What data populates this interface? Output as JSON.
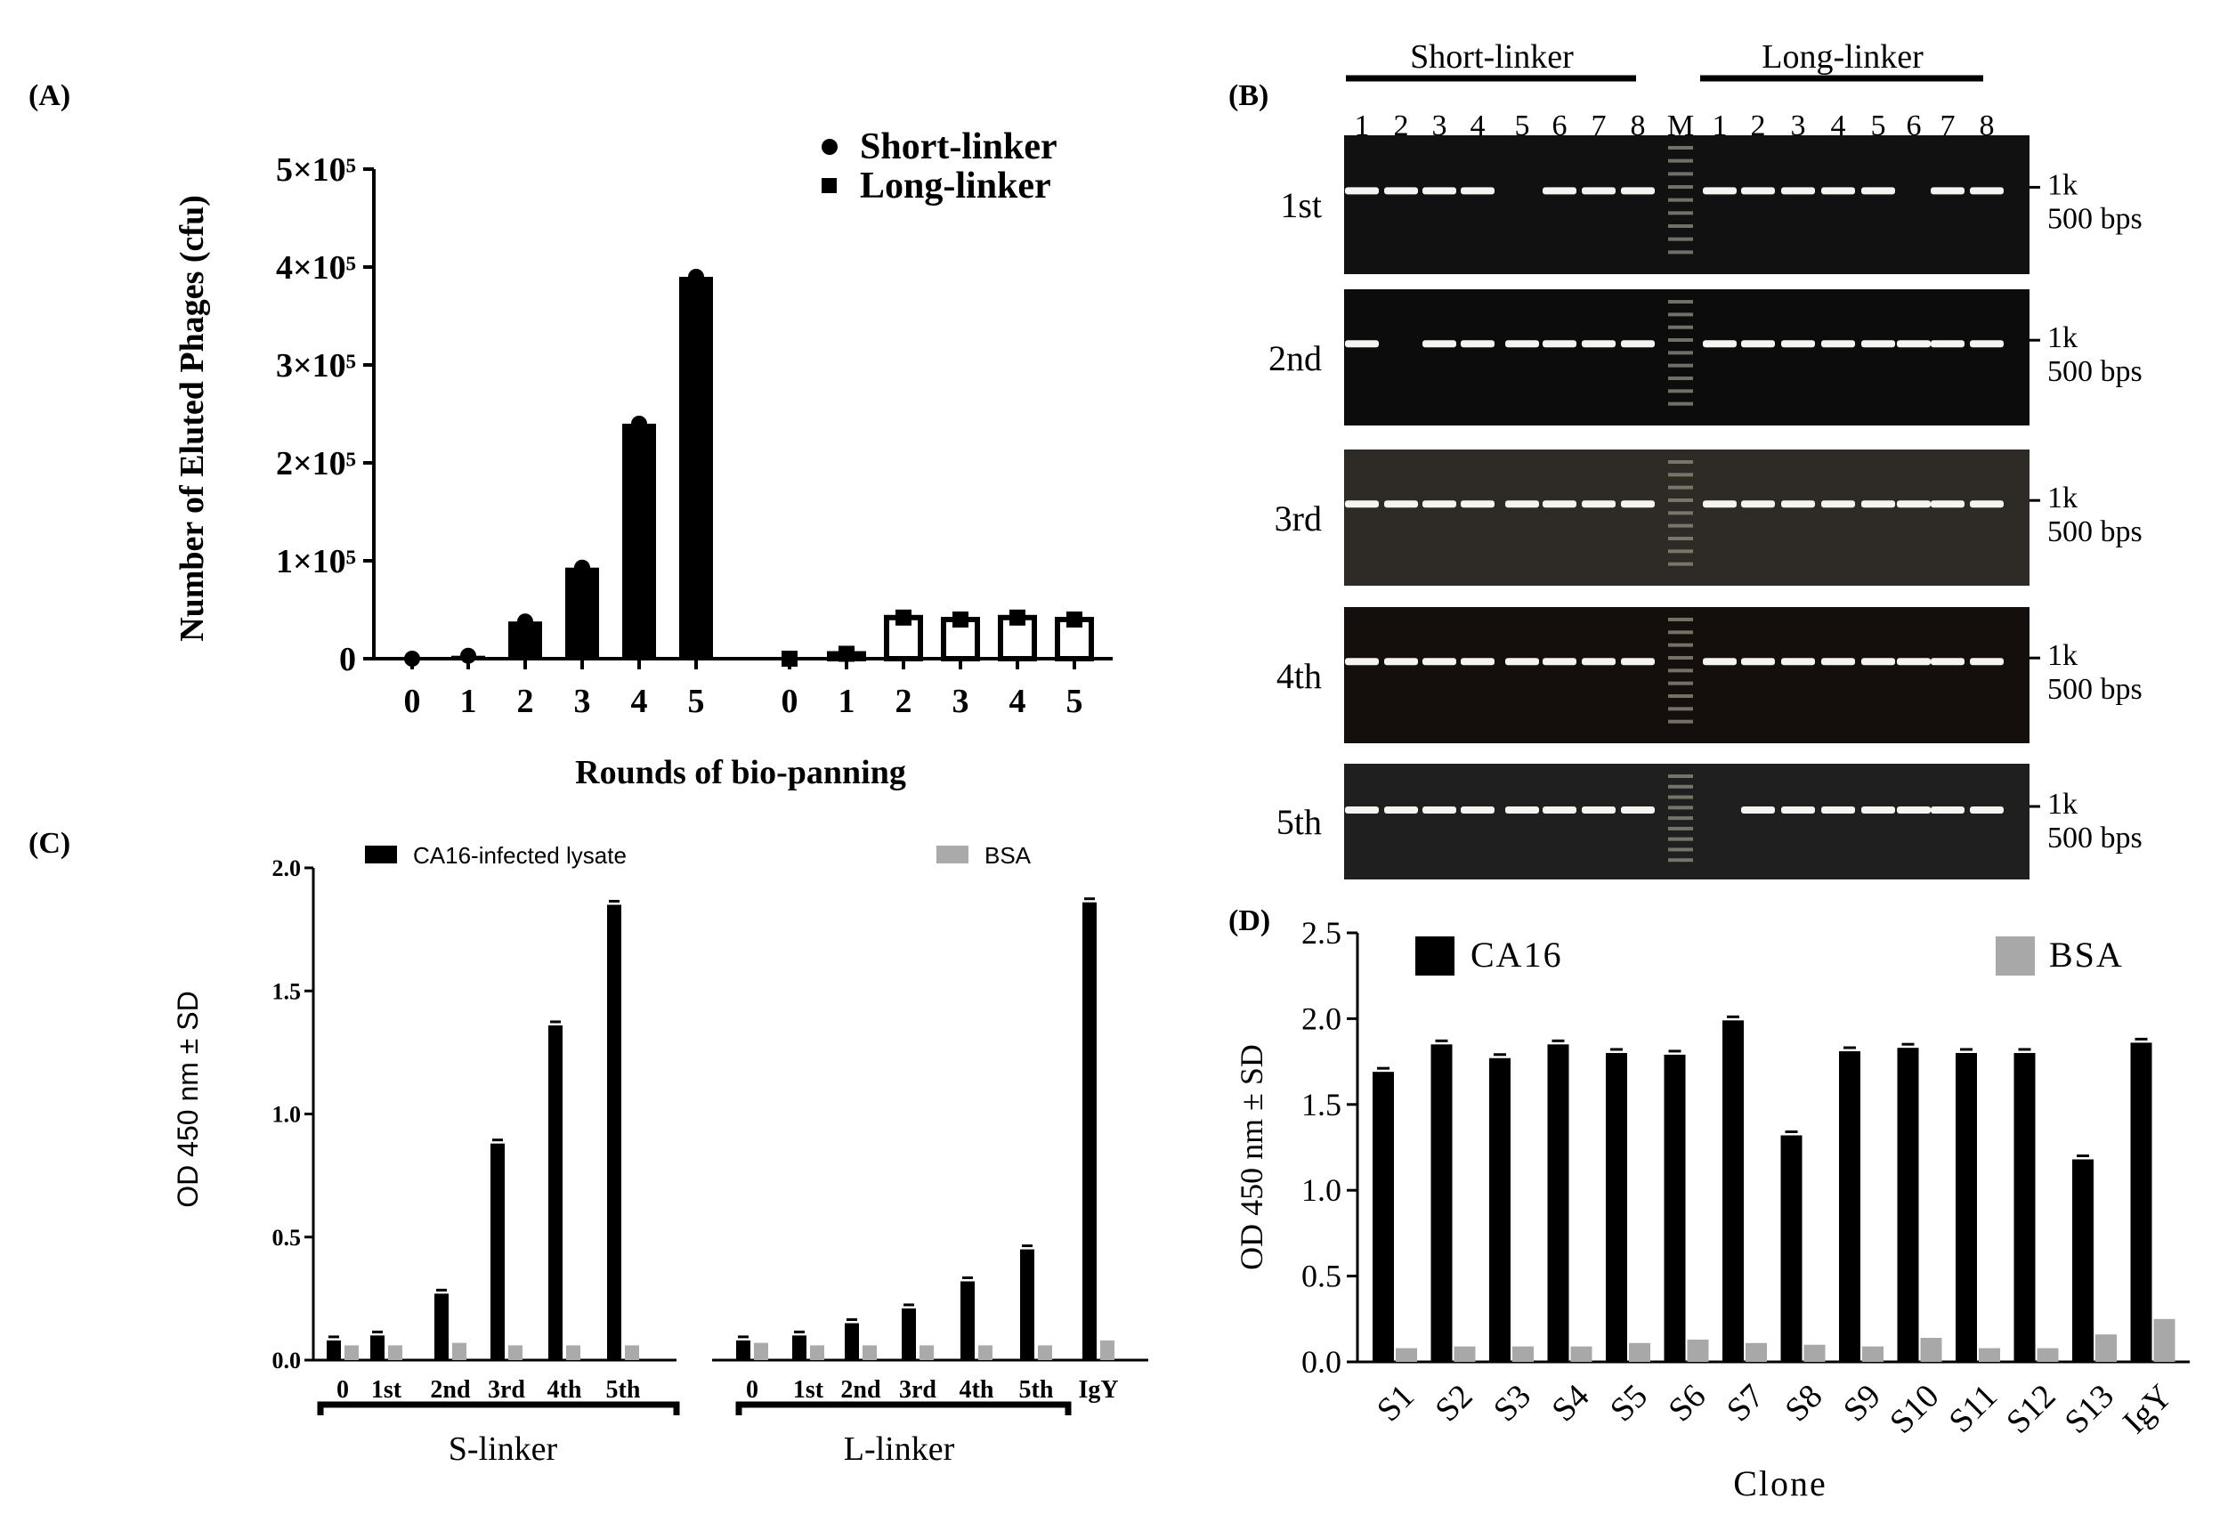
{
  "figure": {
    "panel_labels": [
      "(A)",
      "(B)",
      "(C)",
      "(D)"
    ]
  },
  "chart_data": [
    {
      "panel": "(A)",
      "type": "bar",
      "title": "",
      "xlabel": "Rounds of bio-panning",
      "ylabel": "Number of Eluted Phages (cfu)",
      "ylim": [
        0,
        500000
      ],
      "yticks": [
        0,
        100000,
        200000,
        300000,
        400000,
        500000
      ],
      "ytick_labels": [
        "0",
        "1×10⁵",
        "2×10⁵",
        "3×10⁵",
        "4×10⁵",
        "5×10⁵"
      ],
      "legend_position": "top-right",
      "series": [
        {
          "name": "Short-linker",
          "marker": "circle",
          "fill": "#000000",
          "categories": [
            "0",
            "1",
            "2",
            "3",
            "4",
            "5"
          ],
          "values": [
            0,
            3000,
            38000,
            93000,
            240000,
            390000
          ]
        },
        {
          "name": "Long-linker",
          "marker": "square",
          "fill": "#ffffff",
          "categories": [
            "0",
            "1",
            "2",
            "3",
            "4",
            "5"
          ],
          "values": [
            0,
            5000,
            42000,
            40000,
            42000,
            40000
          ]
        }
      ]
    },
    {
      "panel": "(B)",
      "type": "gel",
      "group_labels": [
        "Short-linker",
        "Long-linker"
      ],
      "lane_labels": [
        "1",
        "2",
        "3",
        "4",
        "5",
        "6",
        "7",
        "8",
        "M",
        "1",
        "2",
        "3",
        "4",
        "5",
        "6",
        "7",
        "8"
      ],
      "rows": [
        {
          "label": "1st",
          "bands": [
            1,
            1,
            1,
            1,
            0,
            1,
            1,
            1,
            "M",
            1,
            1,
            1,
            1,
            1,
            0,
            1,
            1
          ]
        },
        {
          "label": "2nd",
          "bands": [
            1,
            0,
            1,
            1,
            1,
            1,
            1,
            1,
            "M",
            1,
            1,
            1,
            1,
            1,
            1,
            1,
            1
          ]
        },
        {
          "label": "3rd",
          "bands": [
            1,
            1,
            1,
            1,
            1,
            1,
            1,
            1,
            "M",
            1,
            1,
            1,
            1,
            1,
            1,
            1,
            1
          ]
        },
        {
          "label": "4th",
          "bands": [
            1,
            1,
            1,
            1,
            1,
            1,
            1,
            1,
            "M",
            1,
            1,
            1,
            1,
            1,
            1,
            1,
            1
          ]
        },
        {
          "label": "5th",
          "bands": [
            1,
            1,
            1,
            1,
            1,
            1,
            1,
            1,
            "M",
            0,
            1,
            1,
            1,
            1,
            1,
            1,
            1
          ]
        }
      ],
      "size_markers": [
        "1k",
        "500 bps"
      ]
    },
    {
      "panel": "(C)",
      "type": "bar",
      "ylabel": "OD 450 nm ± SD",
      "ylim": [
        0,
        2.0
      ],
      "yticks": [
        0.0,
        0.5,
        1.0,
        1.5,
        2.0
      ],
      "ytick_labels": [
        "0.0",
        "0.5",
        "1.0",
        "1.5",
        "2.0"
      ],
      "legend": [
        "CA16-infected lysate",
        "BSA"
      ],
      "colors": {
        "CA16-infected lysate": "#000000",
        "BSA": "#aaaaaa"
      },
      "groups": [
        {
          "label": "S-linker",
          "categories": [
            "0",
            "1st",
            "2nd",
            "3rd",
            "4th",
            "5th"
          ],
          "ca16": [
            0.08,
            0.1,
            0.27,
            0.88,
            1.36,
            1.85
          ],
          "bsa": [
            0.06,
            0.06,
            0.07,
            0.06,
            0.06,
            0.06
          ]
        },
        {
          "label": "L-linker",
          "categories": [
            "0",
            "1st",
            "2nd",
            "3rd",
            "4th",
            "5th"
          ],
          "ca16": [
            0.08,
            0.1,
            0.15,
            0.21,
            0.32,
            0.45
          ],
          "bsa": [
            0.07,
            0.06,
            0.06,
            0.06,
            0.06,
            0.06
          ]
        }
      ],
      "extra": {
        "category": "IgY",
        "ca16": 1.86,
        "bsa": 0.08
      }
    },
    {
      "panel": "(D)",
      "type": "bar",
      "xlabel": "Clone",
      "ylabel": "OD 450 nm ± SD",
      "ylim": [
        0,
        2.5
      ],
      "yticks": [
        0.0,
        0.5,
        1.0,
        1.5,
        2.0,
        2.5
      ],
      "ytick_labels": [
        "0.0",
        "0.5",
        "1.0",
        "1.5",
        "2.0",
        "2.5"
      ],
      "legend": [
        "CA16",
        "BSA"
      ],
      "colors": {
        "CA16": "#000000",
        "BSA": "#a8a8a8"
      },
      "categories": [
        "S1",
        "S2",
        "S3",
        "S4",
        "S5",
        "S6",
        "S7",
        "S8",
        "S9",
        "S10",
        "S11",
        "S12",
        "S13",
        "IgY"
      ],
      "series": [
        {
          "name": "CA16",
          "values": [
            1.69,
            1.85,
            1.77,
            1.85,
            1.8,
            1.79,
            1.99,
            1.32,
            1.81,
            1.83,
            1.8,
            1.8,
            1.18,
            1.86
          ]
        },
        {
          "name": "BSA",
          "values": [
            0.08,
            0.09,
            0.09,
            0.09,
            0.11,
            0.13,
            0.11,
            0.1,
            0.09,
            0.14,
            0.08,
            0.08,
            0.16,
            0.25
          ]
        }
      ]
    }
  ]
}
